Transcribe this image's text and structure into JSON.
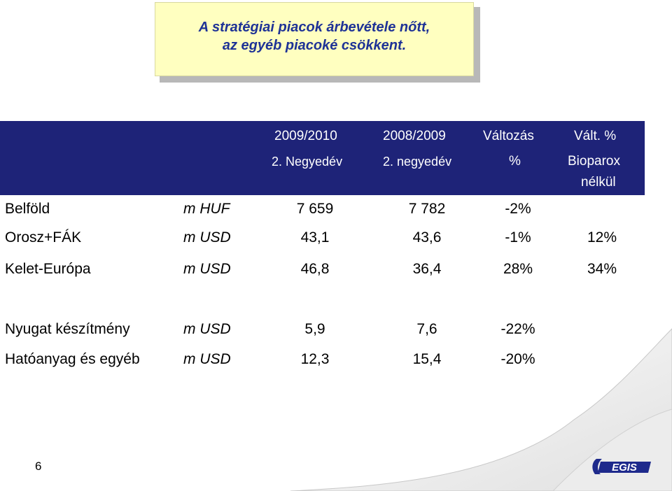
{
  "title": {
    "line1": "A stratégiai piacok árbevétele nőtt,",
    "line2": "az egyéb piacoké csökkent."
  },
  "header": {
    "col1_line1": "2009/2010",
    "col1_line2": "2. Negyedév",
    "col2_line1": "2008/2009",
    "col2_line2": "2. negyedév",
    "col3_line1": "Változás",
    "col3_line2": "%",
    "col4_line1": "Vált. %",
    "col4_line2": "Bioparox",
    "col4_line3": "nélkül"
  },
  "rows": [
    {
      "label": "Belföld",
      "unit": "m HUF",
      "v1": "7 659",
      "v2": "7 782",
      "v3": "-2%",
      "v4": ""
    },
    {
      "label": "Orosz+FÁK",
      "unit": "m USD",
      "v1": "43,1",
      "v2": "43,6",
      "v3": "-1%",
      "v4": "12%"
    },
    {
      "label": "Kelet-Európa",
      "unit": "m USD",
      "v1": "46,8",
      "v2": "36,4",
      "v3": "28%",
      "v4": "34%"
    },
    {
      "label": "Nyugat készítmény",
      "unit": "m USD",
      "v1": "5,9",
      "v2": "7,6",
      "v3": "-22%",
      "v4": ""
    },
    {
      "label": "Hatóanyag és egyéb",
      "unit": "m USD",
      "v1": "12,3",
      "v2": "15,4",
      "v3": "-20%",
      "v4": ""
    }
  ],
  "footer": {
    "page_number": "6",
    "logo_text": "EGIS"
  },
  "colors": {
    "header_band": "#1e2378",
    "title_text": "#1e3296",
    "title_bg": "#ffffc0",
    "logo_blue": "#1e2a8c"
  }
}
